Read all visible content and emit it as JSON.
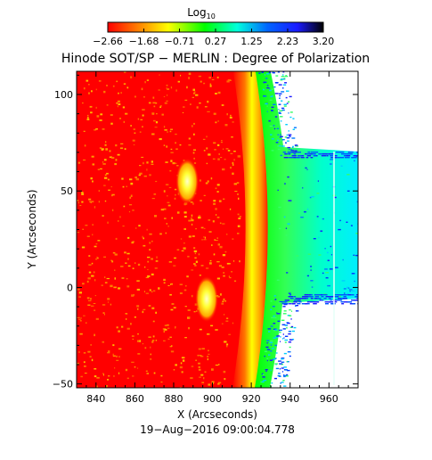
{
  "chart_data": {
    "type": "heatmap",
    "title": "Hinode SOT/SP − MERLIN : Degree of Polarization",
    "xlabel": "X (Arcseconds)",
    "ylabel": "Y (Arcseconds)",
    "footer": "19−Aug−2016 09:00:04.778",
    "xlim": [
      830,
      975
    ],
    "ylim": [
      -52,
      112
    ],
    "x_ticks": [
      840,
      860,
      880,
      900,
      920,
      940,
      960
    ],
    "y_ticks": [
      -50,
      0,
      50,
      100
    ],
    "x_tick_labels": [
      "840",
      "860",
      "880",
      "900",
      "920",
      "940",
      "960"
    ],
    "y_tick_labels": [
      "−50",
      "0",
      "50",
      "100"
    ],
    "limb_x": 928,
    "colorbar": {
      "label_base": "Log",
      "label_sub": "10",
      "min": -2.66,
      "max": 3.2,
      "tick_values": [
        -2.66,
        -1.68,
        -0.71,
        0.27,
        1.25,
        2.23,
        3.2
      ],
      "tick_labels": [
        "−2.66",
        "−1.68",
        "−0.71",
        "0.27",
        "1.25",
        "2.23",
        "3.20"
      ],
      "colors": [
        "#ff0000",
        "#ff8800",
        "#ffff00",
        "#00ff00",
        "#00ffdd",
        "#0066ff",
        "#1a1aff",
        "#000000"
      ]
    },
    "features": [
      {
        "x": 887,
        "y": 55
      },
      {
        "x": 897,
        "y": -6
      }
    ]
  }
}
